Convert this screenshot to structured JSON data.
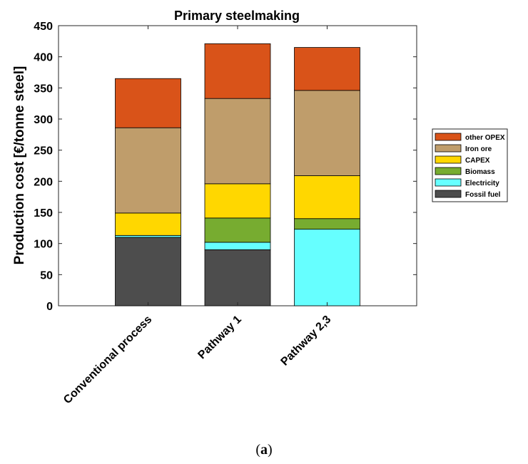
{
  "chart_data": {
    "type": "bar",
    "stacked": true,
    "title": "Primary steelmaking",
    "ylabel": "Production cost [€/tonne steel]",
    "xlabel": "",
    "ylim": [
      0,
      450
    ],
    "yticks": [
      0,
      50,
      100,
      150,
      200,
      250,
      300,
      350,
      400,
      450
    ],
    "categories": [
      "Conventional process",
      "Pathway 1",
      "Pathway 2,3"
    ],
    "legend_position": "right",
    "series": [
      {
        "name": "Fossil fuel",
        "color": "#4d4d4d",
        "values": [
          110,
          90,
          0
        ]
      },
      {
        "name": "Electricity",
        "color": "#66ffff",
        "values": [
          3,
          12,
          123
        ]
      },
      {
        "name": "Biomass",
        "color": "#77ac30",
        "values": [
          0,
          39,
          17
        ]
      },
      {
        "name": "CAPEX",
        "color": "#ffd700",
        "values": [
          36,
          55,
          69
        ]
      },
      {
        "name": "Iron ore",
        "color": "#bf9d6b",
        "values": [
          137,
          137,
          137
        ]
      },
      {
        "name": "other OPEX",
        "color": "#d95319",
        "values": [
          79,
          88,
          69
        ]
      }
    ]
  },
  "caption": {
    "open": "(",
    "letter": "a",
    "close": ")"
  }
}
